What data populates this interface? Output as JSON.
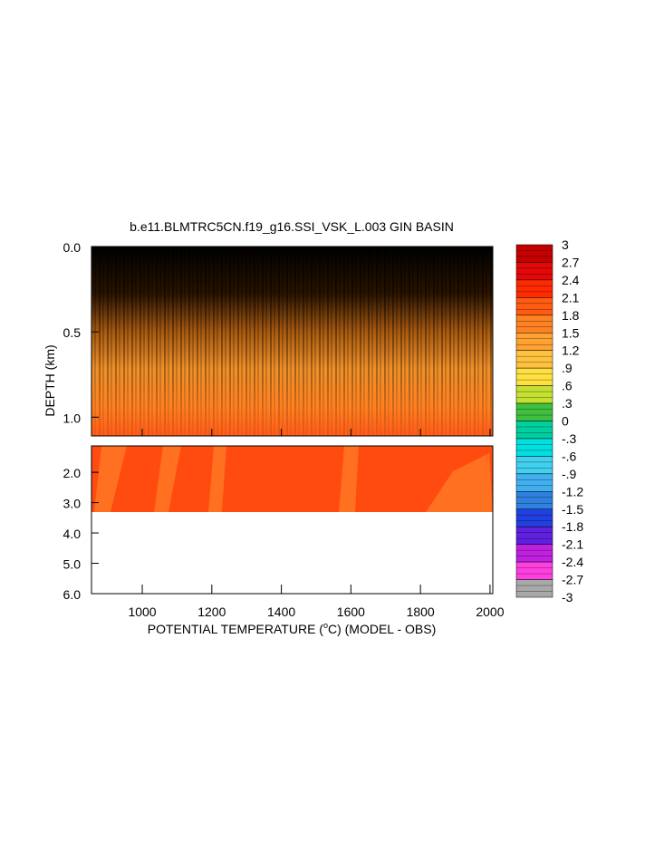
{
  "chart_data": {
    "type": "contour",
    "title": "b.e11.BLMTRC5CN.f19_g16.SSI_VSK_L.003 GIN BASIN",
    "xlabel": "POTENTIAL TEMPERATURE (",
    "xlabel_unit": "o",
    "xlabel_tail": "C) (MODEL - OBS)",
    "ylabel": "DEPTH (km)",
    "xlim": [
      854,
      2008
    ],
    "xticks": [
      1000,
      1200,
      1400,
      1600,
      1800,
      2000
    ],
    "ylim": [
      0,
      1.11
    ],
    "yticks": [
      {
        "value": 0,
        "label": "0.0"
      },
      {
        "value": 0.5,
        "label": "0.5"
      },
      {
        "value": 1,
        "label": "1.0"
      }
    ],
    "y2lim": [
      1.13,
      6
    ],
    "y2ticks": [
      {
        "value": 2,
        "label": "2.0"
      },
      {
        "value": 3,
        "label": "3.0"
      },
      {
        "value": 4,
        "label": "4.0"
      },
      {
        "value": 5,
        "label": "5.0"
      },
      {
        "value": 6,
        "label": "6.0"
      }
    ],
    "levels": [
      3,
      2.7,
      2.4,
      2.1,
      1.8,
      1.5,
      1.2,
      {
        "value": 0.9,
        "label": ".9"
      },
      {
        "value": 0.6,
        "label": ".6"
      },
      {
        "value": 0.3,
        "label": ".3"
      },
      0,
      {
        "value": -0.3,
        "label": "-.3"
      },
      {
        "value": -0.6,
        "label": "-.6"
      },
      {
        "value": -0.9,
        "label": "-.9"
      },
      -1.2,
      -1.5,
      -1.8,
      -2.1,
      -2.4,
      -2.7,
      -3
    ],
    "colors": [
      "#c40000",
      "#e40808",
      "#ff2a00",
      "#ff5c12",
      "#ff8222",
      "#ffa232",
      "#ffc240",
      "#ffe040",
      "#c4e030",
      "#40c040",
      "#00d0a0",
      "#00e0e0",
      "#40d0f0",
      "#40b0f0",
      "#3080e0",
      "#2040e0",
      "#6020e0",
      "#c020e0",
      "#ff40e0",
      "#a8a8a8"
    ]
  }
}
